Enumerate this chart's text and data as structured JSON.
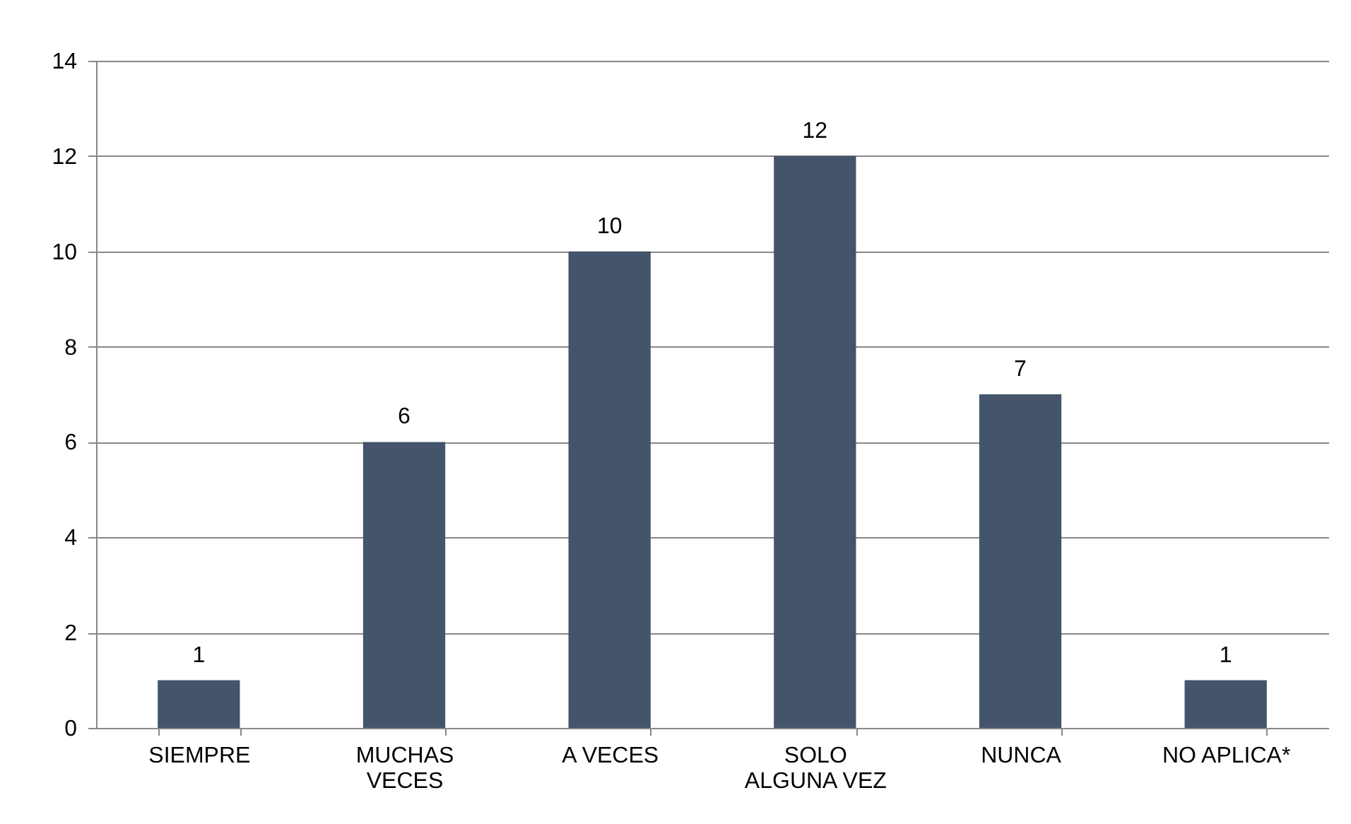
{
  "chart_data": {
    "type": "bar",
    "categories": [
      "SIEMPRE",
      "MUCHAS VECES",
      "A VECES",
      "SOLO ALGUNA VEZ",
      "NUNCA",
      "NO APLICA*"
    ],
    "values": [
      1,
      6,
      10,
      12,
      7,
      1
    ],
    "color": "#44546a",
    "ylim": [
      0,
      14
    ],
    "yticks": [
      0,
      2,
      4,
      6,
      8,
      10,
      12,
      14
    ],
    "grid": "y",
    "data_labels": true
  }
}
